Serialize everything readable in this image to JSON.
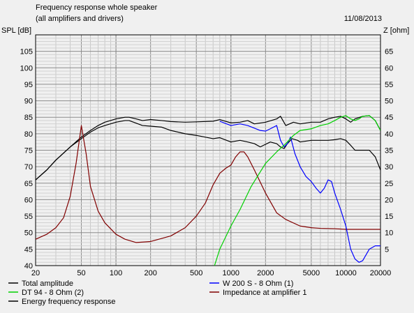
{
  "chart_data": {
    "type": "line",
    "title": "Frequency response whole speaker",
    "subtitle": "(all amplifiers and drivers)",
    "date": "11/08/2013",
    "ylabel_left": "SPL [dB]",
    "ylabel_right": "Z [ohm]",
    "x_scale": "log",
    "xlim": [
      20,
      20000
    ],
    "ylim_left": [
      40,
      110
    ],
    "ylim_right": [
      0,
      70
    ],
    "grid": true,
    "x_ticks": [
      {
        "v": 20,
        "label": "20"
      },
      {
        "v": 50,
        "label": "50"
      },
      {
        "v": 100,
        "label": "100"
      },
      {
        "v": 200,
        "label": "200"
      },
      {
        "v": 500,
        "label": "500"
      },
      {
        "v": 1000,
        "label": "1000"
      },
      {
        "v": 2000,
        "label": "2000"
      },
      {
        "v": 5000,
        "label": "5000"
      },
      {
        "v": 10000,
        "label": "10000"
      },
      {
        "v": 20000,
        "label": "20000"
      }
    ],
    "y_ticks_left": [
      "40",
      "45",
      "50",
      "55",
      "60",
      "65",
      "70",
      "75",
      "80",
      "85",
      "90",
      "95",
      "100",
      "105"
    ],
    "y_ticks_right": [
      "5",
      "10",
      "15",
      "20",
      "25",
      "30",
      "35",
      "40",
      "45",
      "50",
      "55",
      "60",
      "65"
    ],
    "legend_placement": "bottom",
    "series": [
      {
        "name": "Total amplitude",
        "axis": "left",
        "color": "#000000",
        "points": [
          [
            20,
            66
          ],
          [
            25,
            69
          ],
          [
            30,
            72
          ],
          [
            40,
            76
          ],
          [
            50,
            79
          ],
          [
            60,
            81
          ],
          [
            70,
            82.5
          ],
          [
            80,
            83.5
          ],
          [
            100,
            84.5
          ],
          [
            120,
            85
          ],
          [
            130,
            85
          ],
          [
            150,
            84.5
          ],
          [
            170,
            84
          ],
          [
            200,
            84.3
          ],
          [
            250,
            84
          ],
          [
            300,
            83.7
          ],
          [
            400,
            83.5
          ],
          [
            500,
            83.6
          ],
          [
            700,
            83.8
          ],
          [
            800,
            84.3
          ],
          [
            1000,
            83.3
          ],
          [
            1200,
            83.5
          ],
          [
            1400,
            84
          ],
          [
            1600,
            83
          ],
          [
            2000,
            83.5
          ],
          [
            2500,
            84.5
          ],
          [
            2700,
            85.3
          ],
          [
            3000,
            82.5
          ],
          [
            3500,
            83.5
          ],
          [
            4000,
            83
          ],
          [
            5000,
            83.5
          ],
          [
            6000,
            83.5
          ],
          [
            7000,
            84.5
          ],
          [
            8000,
            85
          ],
          [
            9000,
            85.3
          ],
          [
            10000,
            84.5
          ],
          [
            11000,
            83.5
          ],
          [
            12000,
            84.5
          ],
          [
            14000,
            85.3
          ],
          [
            16000,
            85.5
          ],
          [
            18000,
            84
          ],
          [
            20000,
            81
          ]
        ]
      },
      {
        "name": "W 200 S - 8 Ohm (1)",
        "axis": "left",
        "color": "#0000ff",
        "points": [
          [
            800,
            83.8
          ],
          [
            1000,
            82.5
          ],
          [
            1200,
            83
          ],
          [
            1400,
            82.5
          ],
          [
            1800,
            81
          ],
          [
            2000,
            80.8
          ],
          [
            2200,
            81.5
          ],
          [
            2500,
            82.5
          ],
          [
            2700,
            78
          ],
          [
            2900,
            76
          ],
          [
            3100,
            77
          ],
          [
            3300,
            79
          ],
          [
            3600,
            74
          ],
          [
            4000,
            70
          ],
          [
            4500,
            67
          ],
          [
            5000,
            65.5
          ],
          [
            5500,
            63.5
          ],
          [
            6000,
            62
          ],
          [
            6500,
            63.5
          ],
          [
            7000,
            66
          ],
          [
            7500,
            65.5
          ],
          [
            8000,
            62
          ],
          [
            9000,
            57
          ],
          [
            10000,
            52
          ],
          [
            11000,
            45
          ],
          [
            12000,
            42
          ],
          [
            13000,
            41
          ],
          [
            14000,
            41.5
          ],
          [
            16000,
            45
          ],
          [
            18000,
            46
          ],
          [
            20000,
            46
          ]
        ]
      },
      {
        "name": "DT 94 - 8 Ohm (2)",
        "axis": "left",
        "color": "#00d000",
        "points": [
          [
            720,
            40
          ],
          [
            800,
            45
          ],
          [
            1000,
            52
          ],
          [
            1200,
            57
          ],
          [
            1500,
            64
          ],
          [
            2000,
            71
          ],
          [
            2500,
            74.5
          ],
          [
            3000,
            77
          ],
          [
            3500,
            79.5
          ],
          [
            4000,
            81
          ],
          [
            5000,
            81.5
          ],
          [
            6000,
            82.5
          ],
          [
            7000,
            83
          ],
          [
            8000,
            84
          ],
          [
            9000,
            85
          ],
          [
            10000,
            85.5
          ],
          [
            11000,
            84.5
          ],
          [
            12000,
            84
          ],
          [
            13000,
            84.5
          ],
          [
            14000,
            85.3
          ],
          [
            16000,
            85.5
          ],
          [
            18000,
            84
          ],
          [
            20000,
            81
          ]
        ]
      },
      {
        "name": "Impedance at amplifier 1",
        "axis": "right",
        "color": "#800000",
        "points": [
          [
            20,
            8
          ],
          [
            25,
            9.5
          ],
          [
            30,
            11.5
          ],
          [
            35,
            14.5
          ],
          [
            40,
            21
          ],
          [
            45,
            31
          ],
          [
            50,
            42.5
          ],
          [
            55,
            34
          ],
          [
            60,
            24
          ],
          [
            70,
            16.5
          ],
          [
            80,
            13
          ],
          [
            100,
            9.5
          ],
          [
            120,
            8
          ],
          [
            150,
            7
          ],
          [
            200,
            7.3
          ],
          [
            300,
            9
          ],
          [
            400,
            11.5
          ],
          [
            500,
            15
          ],
          [
            600,
            19
          ],
          [
            700,
            24.5
          ],
          [
            800,
            28
          ],
          [
            900,
            29.5
          ],
          [
            1000,
            30.5
          ],
          [
            1100,
            33
          ],
          [
            1200,
            34.5
          ],
          [
            1300,
            34.5
          ],
          [
            1400,
            33
          ],
          [
            1600,
            29
          ],
          [
            2000,
            22
          ],
          [
            2500,
            16
          ],
          [
            3000,
            14
          ],
          [
            4000,
            12
          ],
          [
            5000,
            11.5
          ],
          [
            6000,
            11.3
          ],
          [
            8000,
            11.2
          ],
          [
            10000,
            11
          ],
          [
            15000,
            11
          ],
          [
            20000,
            11
          ]
        ]
      },
      {
        "name": "Energy frequency response",
        "axis": "left",
        "color": "#000000",
        "points": [
          [
            20,
            66
          ],
          [
            25,
            69
          ],
          [
            30,
            72
          ],
          [
            40,
            76
          ],
          [
            50,
            78.5
          ],
          [
            60,
            80.5
          ],
          [
            70,
            81.8
          ],
          [
            80,
            82.5
          ],
          [
            100,
            83.5
          ],
          [
            120,
            84
          ],
          [
            130,
            84
          ],
          [
            150,
            83.2
          ],
          [
            170,
            82.5
          ],
          [
            200,
            82.3
          ],
          [
            250,
            82
          ],
          [
            300,
            81
          ],
          [
            400,
            80
          ],
          [
            500,
            79.5
          ],
          [
            700,
            78.5
          ],
          [
            800,
            78.8
          ],
          [
            1000,
            77.5
          ],
          [
            1200,
            78
          ],
          [
            1400,
            77.5
          ],
          [
            1600,
            77
          ],
          [
            1800,
            76
          ],
          [
            2000,
            76.8
          ],
          [
            2200,
            77.5
          ],
          [
            2500,
            77
          ],
          [
            2700,
            76
          ],
          [
            2900,
            75.5
          ],
          [
            3100,
            77
          ],
          [
            3400,
            78.5
          ],
          [
            3800,
            78
          ],
          [
            4000,
            77.5
          ],
          [
            5000,
            78
          ],
          [
            6000,
            78
          ],
          [
            7000,
            78
          ],
          [
            8000,
            78.2
          ],
          [
            9000,
            78.5
          ],
          [
            10000,
            78
          ],
          [
            11000,
            76.5
          ],
          [
            12000,
            75
          ],
          [
            14000,
            75
          ],
          [
            16000,
            75
          ],
          [
            18000,
            73
          ],
          [
            20000,
            69
          ]
        ]
      }
    ]
  }
}
